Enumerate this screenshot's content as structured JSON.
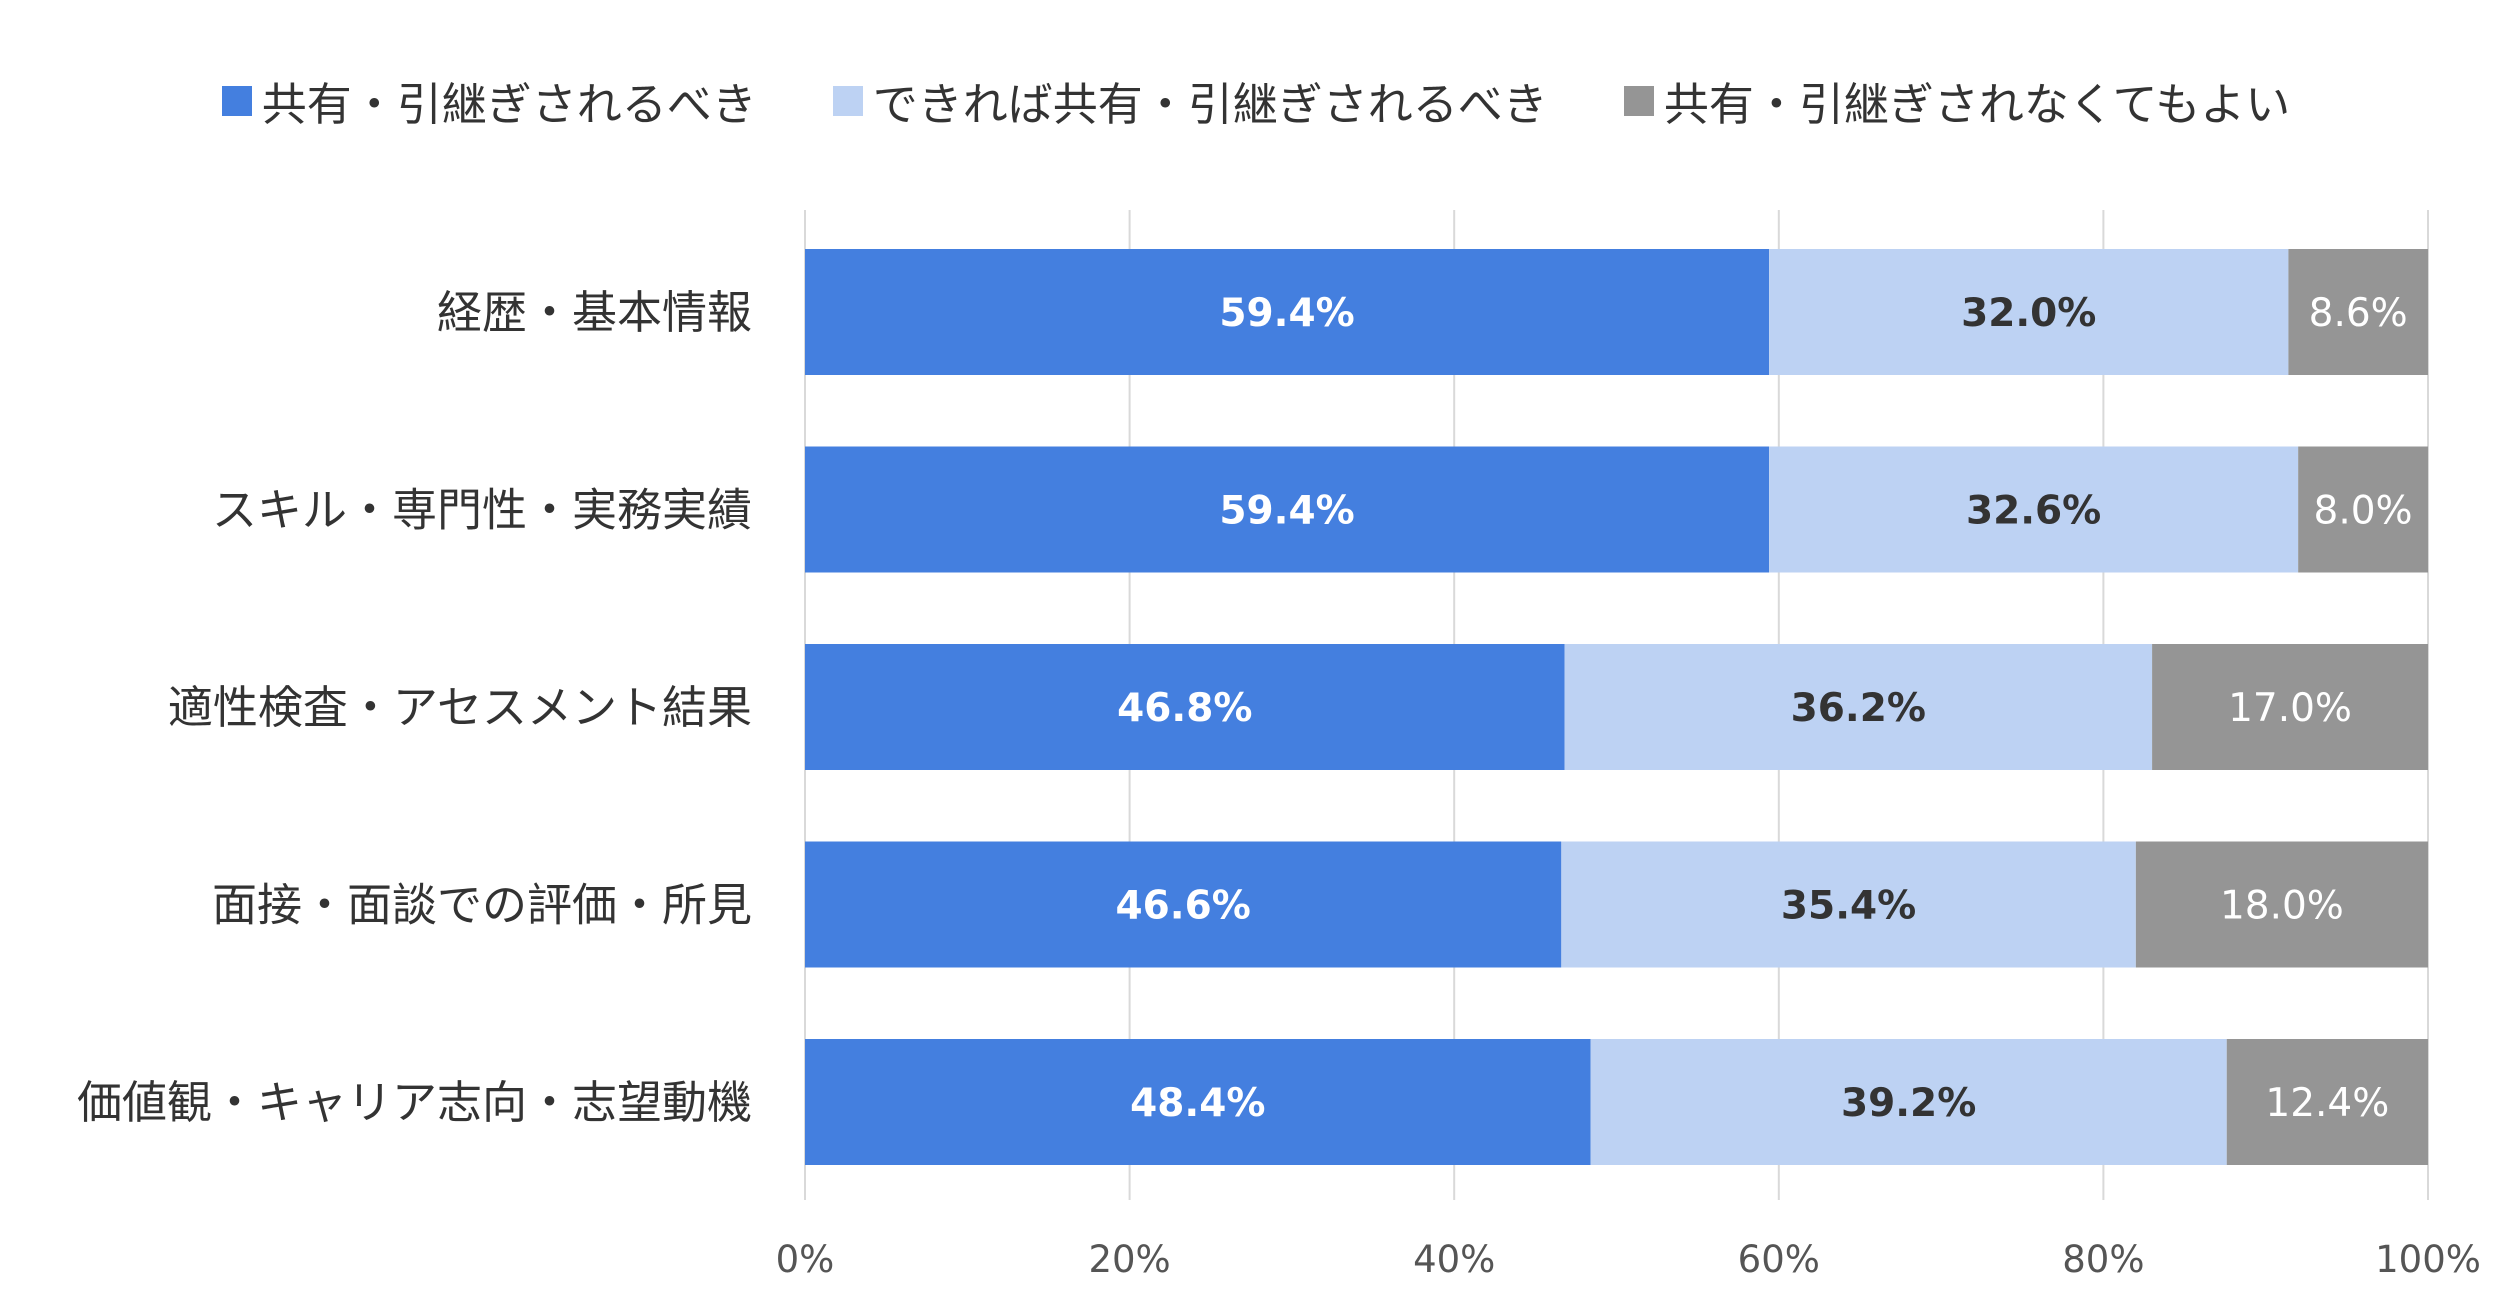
{
  "legend": {
    "items": [
      {
        "label": "共有・引継ぎされるべき",
        "color": "#447fdf"
      },
      {
        "label": "できれば共有・引継ぎされるべき",
        "color": "#bdd2f3"
      },
      {
        "label": "共有・引継ぎされなくてもよい",
        "color": "#959595"
      }
    ]
  },
  "chart_data": {
    "type": "bar",
    "orientation": "horizontal",
    "stacked": true,
    "categories": [
      "経歴・基本情報",
      "スキル・専門性・実務実績",
      "適性検査・アセスメント結果",
      "面接・面談での評価・所見",
      "価値観・キャリア志向・志望動機"
    ],
    "series": [
      {
        "name": "共有・引継ぎされるべき",
        "values": [
          59.4,
          59.4,
          46.8,
          46.6,
          48.4
        ],
        "color": "#447fdf",
        "label_color": "#ffffff",
        "label_bold": true
      },
      {
        "name": "できれば共有・引継ぎされるべき",
        "values": [
          32.0,
          32.6,
          36.2,
          35.4,
          39.2
        ],
        "color": "#bdd2f3",
        "label_color": "#333333",
        "label_bold": true
      },
      {
        "name": "共有・引継ぎされなくてもよい",
        "values": [
          8.6,
          8.0,
          17.0,
          18.0,
          12.4
        ],
        "color": "#959595",
        "label_color": "#ffffff",
        "label_bold": false
      }
    ],
    "xlim": [
      0,
      100
    ],
    "xticks": [
      0,
      20,
      40,
      60,
      80,
      100
    ],
    "xtick_labels": [
      "0%",
      "20%",
      "40%",
      "60%",
      "80%",
      "100%"
    ],
    "value_suffix": "%",
    "grid": true,
    "legend_position": "top"
  }
}
